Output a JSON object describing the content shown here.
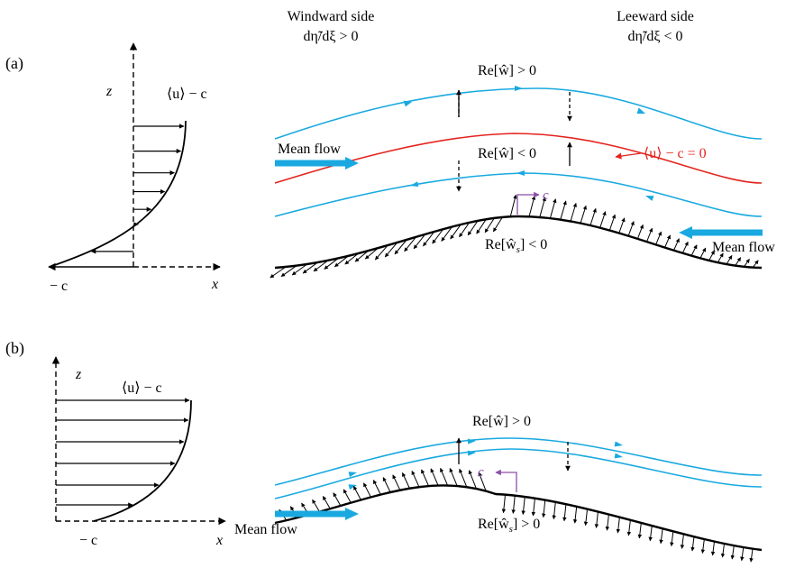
{
  "header": {
    "windward": "Windward side",
    "windward_cond": "dη̃/dξ > 0",
    "leeward": "Leeward side",
    "leeward_cond": "dη̃/dξ < 0"
  },
  "panel_a": {
    "label": "(a)",
    "z_label": "z",
    "x_label": "x",
    "profile_label": "⟨u⟩ − c",
    "neg_c": "− c",
    "re_w_pos": "Re[ŵ] > 0",
    "re_w_neg": "Re[ŵ] < 0",
    "mean_flow_left": "Mean flow",
    "mean_flow_right": "Mean flow",
    "critical": "⟨u⟩ − c = 0",
    "c_label": "c",
    "re_ws": "Re[ŵ",
    "re_ws_sub": "s",
    "re_ws_tail": "] < 0"
  },
  "panel_b": {
    "label": "(b)",
    "z_label": "z",
    "x_label": "x",
    "profile_label": "⟨u⟩ − c",
    "neg_c": "− c",
    "re_w_pos": "Re[ŵ] > 0",
    "mean_flow": "Mean flow",
    "c_label": "c",
    "re_ws": "Re[ŵ",
    "re_ws_sub": "s",
    "re_ws_tail": "] > 0"
  },
  "colors": {
    "streamline": "#19a9e0",
    "critical": "#e3231d",
    "phase_speed": "#8b4fa8",
    "mean_flow_arrow": "#19a9e0"
  }
}
